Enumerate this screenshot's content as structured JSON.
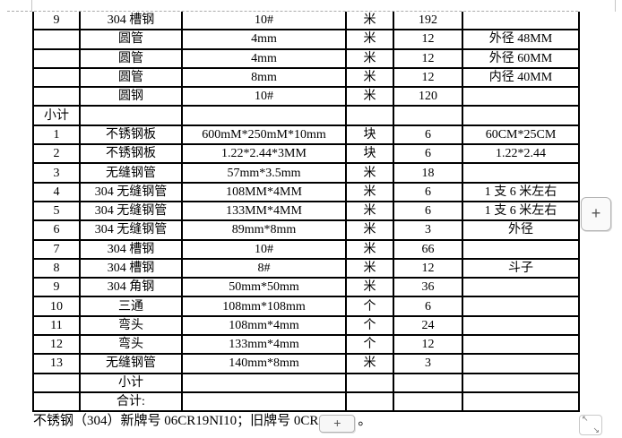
{
  "table": {
    "rows": [
      {
        "no": "9",
        "name": "304 槽钢",
        "spec": "10#",
        "unit": "米",
        "qty": "192",
        "note": ""
      },
      {
        "no": "",
        "name": "圆管",
        "spec": "4mm",
        "unit": "米",
        "qty": "12",
        "note": "外径 48MM"
      },
      {
        "no": "",
        "name": "圆管",
        "spec": "4mm",
        "unit": "米",
        "qty": "12",
        "note": "外径 60MM"
      },
      {
        "no": "",
        "name": "圆管",
        "spec": "8mm",
        "unit": "米",
        "qty": "12",
        "note": "内径 40MM"
      },
      {
        "no": "",
        "name": "圆钢",
        "spec": "10#",
        "unit": "米",
        "qty": "120",
        "note": ""
      },
      {
        "no": "小计",
        "name": "",
        "spec": "",
        "unit": "",
        "qty": "",
        "note": ""
      },
      {
        "no": "1",
        "name": "不锈钢板",
        "spec": "600mM*250mM*10mm",
        "unit": "块",
        "qty": "6",
        "note": "60CM*25CM"
      },
      {
        "no": "2",
        "name": "不锈钢板",
        "spec": "1.22*2.44*3MM",
        "unit": "块",
        "qty": "6",
        "note": "1.22*2.44"
      },
      {
        "no": "3",
        "name": "无缝钢管",
        "spec": "57mm*3.5mm",
        "unit": "米",
        "qty": "18",
        "note": ""
      },
      {
        "no": "4",
        "name": "304 无缝钢管",
        "spec": "108MM*4MM",
        "unit": "米",
        "qty": "6",
        "note": "1 支 6 米左右"
      },
      {
        "no": "5",
        "name": "304 无缝钢管",
        "spec": "133MM*4MM",
        "unit": "米",
        "qty": "6",
        "note": "1 支 6 米左右"
      },
      {
        "no": "6",
        "name": "304 无缝钢管",
        "spec": "89mm*8mm",
        "unit": "米",
        "qty": "3",
        "note": "外径"
      },
      {
        "no": "7",
        "name": "304 槽钢",
        "spec": "10#",
        "unit": "米",
        "qty": "66",
        "note": ""
      },
      {
        "no": "8",
        "name": "304 槽钢",
        "spec": "8#",
        "unit": "米",
        "qty": "12",
        "note": "斗子"
      },
      {
        "no": "9",
        "name": "304 角钢",
        "spec": "50mm*50mm",
        "unit": "米",
        "qty": "36",
        "note": ""
      },
      {
        "no": "10",
        "name": "三通",
        "spec": "108mm*108mm",
        "unit": "个",
        "qty": "6",
        "note": ""
      },
      {
        "no": "11",
        "name": "弯头",
        "spec": "108mm*4mm",
        "unit": "个",
        "qty": "24",
        "note": ""
      },
      {
        "no": "12",
        "name": "弯头",
        "spec": "133mm*4mm",
        "unit": "个",
        "qty": "12",
        "note": ""
      },
      {
        "no": "13",
        "name": "无缝钢管",
        "spec": "140mm*8mm",
        "unit": "米",
        "qty": "3",
        "note": ""
      },
      {
        "no": "",
        "name": "小计",
        "spec": "",
        "unit": "",
        "qty": "",
        "note": ""
      },
      {
        "no": "",
        "name": "合计:",
        "spec": "",
        "unit": "",
        "qty": "",
        "note": ""
      }
    ]
  },
  "footer": {
    "text": "不锈钢（304）新牌号 06CR19NI10；旧牌号 0CR",
    "suffix": "。"
  },
  "controls": {
    "side_add_label": "+",
    "inline_add_label": "+",
    "resize_nw": "↖",
    "resize_se": "↘"
  },
  "colors": {
    "grid": "#000000",
    "boundary_mark": "#ababab",
    "button_border": "#b5b5b5",
    "button_bg": "#f7f7f7",
    "text": "#000000"
  }
}
